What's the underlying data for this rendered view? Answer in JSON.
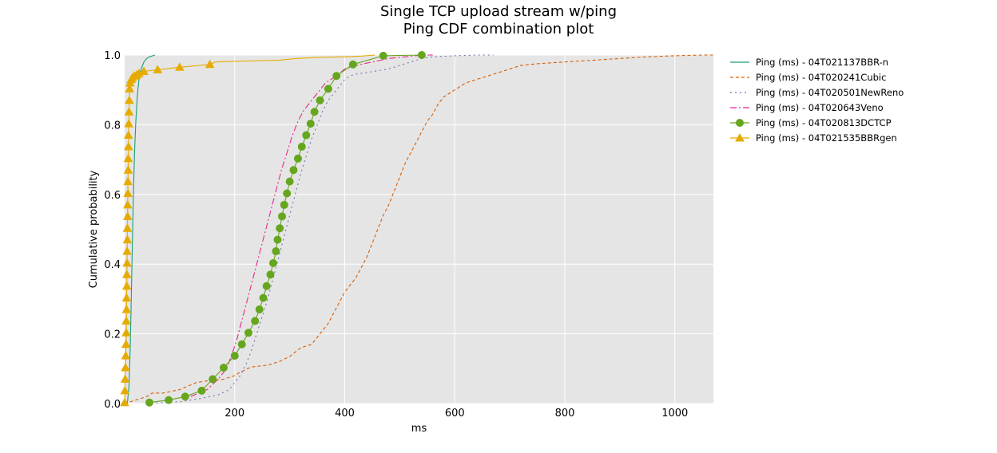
{
  "chart_data": {
    "type": "line",
    "title": "Single TCP upload stream w/ping",
    "subtitle": "Ping CDF combination plot",
    "xlabel": "ms",
    "ylabel": "Cumulative probability",
    "xlim": [
      0,
      1070
    ],
    "ylim": [
      0,
      1
    ],
    "xticks": [
      200,
      400,
      600,
      800,
      1000
    ],
    "yticks": [
      0.0,
      0.2,
      0.4,
      0.6,
      0.8,
      1.0
    ],
    "grid": true,
    "legend_position": "outside-right",
    "background": "#e5e5e5",
    "series": [
      {
        "name": "Ping (ms) - 04T021137BBR-n",
        "color": "#1b9e77",
        "dash": "solid",
        "marker": "none",
        "x": [
          5,
          8,
          10,
          12,
          14,
          16,
          18,
          20,
          23,
          26,
          30,
          35,
          40,
          45,
          55
        ],
        "y": [
          0.0,
          0.05,
          0.15,
          0.3,
          0.45,
          0.6,
          0.72,
          0.8,
          0.88,
          0.93,
          0.96,
          0.98,
          0.99,
          0.995,
          1.0
        ]
      },
      {
        "name": "Ping (ms) - 04T020241Cubic",
        "color": "#d95f02",
        "dash": "4,3",
        "marker": "none",
        "x": [
          0,
          20,
          40,
          50,
          70,
          100,
          130,
          150,
          180,
          200,
          210,
          230,
          260,
          280,
          300,
          320,
          340,
          350,
          360,
          370,
          380,
          390,
          400,
          410,
          420,
          430,
          440,
          450,
          460,
          470,
          480,
          490,
          500,
          510,
          520,
          530,
          540,
          550,
          560,
          570,
          580,
          590,
          600,
          620,
          640,
          660,
          680,
          700,
          720,
          750,
          800,
          850,
          900,
          950,
          1000,
          1050,
          1070
        ],
        "y": [
          0.0,
          0.01,
          0.02,
          0.03,
          0.03,
          0.04,
          0.06,
          0.065,
          0.07,
          0.08,
          0.09,
          0.105,
          0.11,
          0.12,
          0.135,
          0.16,
          0.17,
          0.19,
          0.21,
          0.23,
          0.26,
          0.29,
          0.32,
          0.34,
          0.36,
          0.39,
          0.42,
          0.46,
          0.5,
          0.54,
          0.57,
          0.61,
          0.65,
          0.69,
          0.72,
          0.75,
          0.78,
          0.81,
          0.83,
          0.86,
          0.88,
          0.89,
          0.9,
          0.92,
          0.93,
          0.94,
          0.95,
          0.96,
          0.97,
          0.975,
          0.98,
          0.985,
          0.99,
          0.995,
          0.998,
          1.0,
          1.0
        ]
      },
      {
        "name": "Ping (ms) - 04T020501NewReno",
        "color": "#7570b3",
        "dash": "2,4",
        "marker": "none",
        "x": [
          40,
          100,
          140,
          170,
          190,
          200,
          210,
          220,
          230,
          240,
          250,
          260,
          270,
          280,
          290,
          300,
          310,
          320,
          330,
          340,
          350,
          360,
          370,
          380,
          390,
          400,
          410,
          420,
          440,
          460,
          480,
          500,
          520,
          540,
          560,
          600,
          640,
          670
        ],
        "y": [
          0.0,
          0.005,
          0.015,
          0.025,
          0.04,
          0.06,
          0.08,
          0.11,
          0.15,
          0.2,
          0.25,
          0.3,
          0.36,
          0.42,
          0.48,
          0.54,
          0.6,
          0.66,
          0.71,
          0.76,
          0.8,
          0.84,
          0.87,
          0.89,
          0.91,
          0.93,
          0.94,
          0.945,
          0.95,
          0.955,
          0.96,
          0.97,
          0.98,
          0.99,
          0.995,
          0.998,
          1.0,
          1.0
        ]
      },
      {
        "name": "Ping (ms) - 04T020643Veno",
        "color": "#e7298a",
        "dash": "8,3,2,3",
        "marker": "none",
        "x": [
          120,
          150,
          170,
          185,
          195,
          205,
          215,
          225,
          235,
          245,
          255,
          265,
          275,
          285,
          295,
          305,
          315,
          325,
          335,
          345,
          355,
          365,
          375,
          385,
          400,
          420,
          450,
          480,
          510,
          540,
          560
        ],
        "y": [
          0.02,
          0.04,
          0.07,
          0.1,
          0.14,
          0.19,
          0.25,
          0.31,
          0.37,
          0.43,
          0.49,
          0.55,
          0.61,
          0.67,
          0.72,
          0.77,
          0.81,
          0.84,
          0.86,
          0.88,
          0.9,
          0.92,
          0.93,
          0.94,
          0.96,
          0.97,
          0.98,
          0.99,
          0.995,
          1.0,
          1.0
        ]
      },
      {
        "name": "Ping (ms) - 04T020813DCTCP",
        "color": "#66a61e",
        "dash": "solid",
        "marker": "circle",
        "x": [
          45,
          80,
          110,
          140,
          160,
          180,
          200,
          213,
          225,
          237,
          245,
          252,
          258,
          265,
          270,
          275,
          278,
          282,
          286,
          290,
          295,
          300,
          307,
          315,
          322,
          330,
          338,
          345,
          355,
          370,
          385,
          415,
          470,
          540
        ],
        "y": [
          0.003,
          0.01,
          0.02,
          0.037,
          0.07,
          0.103,
          0.137,
          0.17,
          0.203,
          0.237,
          0.27,
          0.303,
          0.337,
          0.37,
          0.403,
          0.437,
          0.47,
          0.503,
          0.537,
          0.57,
          0.603,
          0.637,
          0.67,
          0.703,
          0.737,
          0.77,
          0.803,
          0.837,
          0.87,
          0.903,
          0.94,
          0.973,
          0.998,
          1.0
        ]
      },
      {
        "name": "Ping (ms) - 04T021535BBRgen",
        "color": "#e6ab02",
        "dash": "solid",
        "marker": "triangle",
        "x": [
          0,
          0.5,
          1,
          1.5,
          2,
          2.5,
          3,
          3,
          3.5,
          3.5,
          4,
          4,
          4.5,
          4.5,
          5,
          5,
          5.5,
          5.5,
          6,
          6,
          6.5,
          6.5,
          7,
          7,
          7.5,
          8,
          8.5,
          9,
          10,
          12,
          14,
          18,
          22,
          26,
          35,
          60,
          100,
          155,
          165,
          200,
          250,
          280,
          310,
          350,
          400,
          430,
          455
        ],
        "y": [
          0.003,
          0.037,
          0.07,
          0.103,
          0.137,
          0.17,
          0.203,
          0.237,
          0.27,
          0.303,
          0.337,
          0.37,
          0.403,
          0.437,
          0.47,
          0.503,
          0.537,
          0.57,
          0.603,
          0.637,
          0.67,
          0.703,
          0.737,
          0.77,
          0.803,
          0.837,
          0.87,
          0.903,
          0.92,
          0.93,
          0.935,
          0.94,
          0.943,
          0.947,
          0.953,
          0.958,
          0.965,
          0.973,
          0.98,
          0.982,
          0.984,
          0.985,
          0.99,
          0.993,
          0.995,
          0.997,
          1.0
        ]
      }
    ]
  }
}
